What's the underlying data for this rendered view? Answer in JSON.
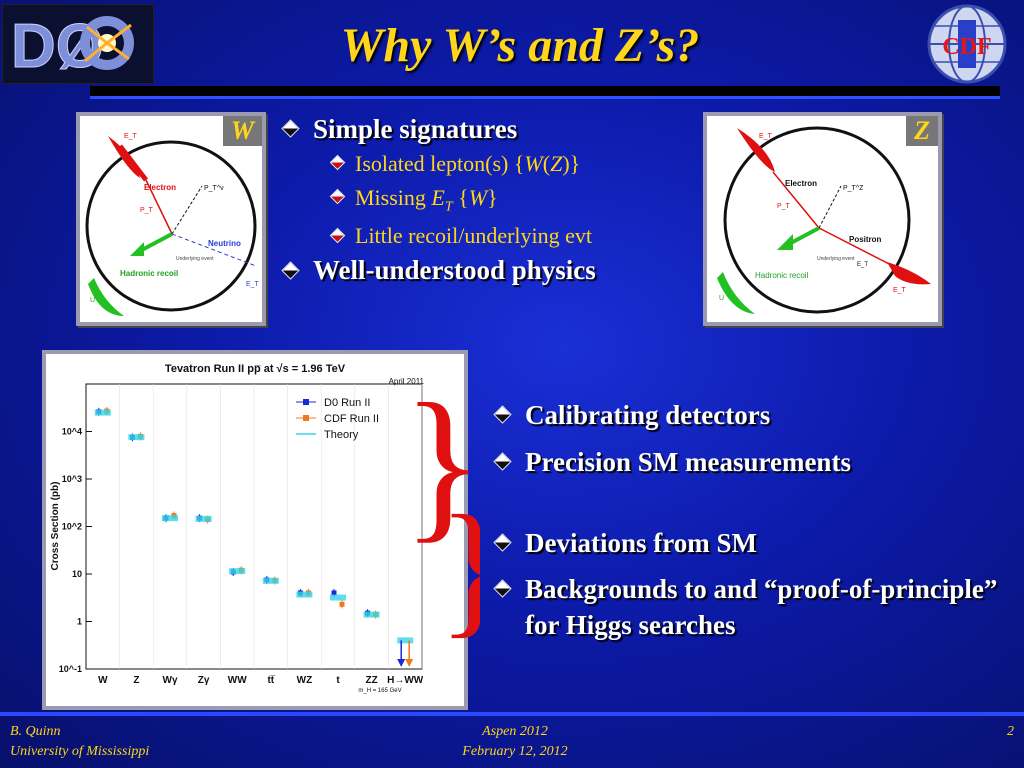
{
  "title": "Why W’s and Z’s?",
  "logos": {
    "left": "DØ",
    "right": "CDF"
  },
  "panel_w": {
    "tag": "W",
    "labels": {
      "et_top": "E_T",
      "electron": "Electron",
      "pt": "P_T",
      "ptnu": "P_T^ν",
      "neutrino": "Neutrino",
      "underlying": "Underlying event",
      "recoil": "Hadronic recoil",
      "u": "U",
      "et_right": "E_T"
    }
  },
  "panel_z": {
    "tag": "Z",
    "labels": {
      "et_top": "E_T",
      "electron": "Electron",
      "pt": "P_T",
      "ptz": "P_T^Z",
      "positron": "Positron",
      "underlying": "Underlying event",
      "recoil": "Hadronic recoil",
      "u": "U",
      "et_right": "E_T",
      "et_bottom": "E_T"
    }
  },
  "bullets_top": [
    {
      "text": "Simple signatures",
      "sub": [
        {
          "pre": "Isolated lepton(s) {",
          "em1": "W",
          "mid": "(",
          "em2": "Z",
          "post": ")}"
        },
        {
          "pre": "Missing ",
          "em1": "E",
          "sub1": "T",
          "mid": " {",
          "em2": "W",
          "post": "}"
        },
        {
          "pre": "Little recoil/underlying evt"
        }
      ]
    },
    {
      "text": "Well-understood physics"
    }
  ],
  "bullets_right": [
    "Calibrating detectors",
    "Precision SM measurements",
    "Deviations from SM",
    "Backgrounds to and “proof-of-principle” for Higgs searches"
  ],
  "chart_data": {
    "type": "scatter",
    "title": "Tevatron Run II pp̅ at √s = 1.96 TeV",
    "annotation": "April 2011",
    "ylabel": "Cross Section (pb)",
    "yscale": "log",
    "ylim": [
      0.1,
      100000
    ],
    "yticks": [
      "10^-1",
      "1",
      "10",
      "10^2",
      "10^3",
      "10^4"
    ],
    "categories": [
      "W",
      "Z",
      "Wγ",
      "Zγ",
      "WW",
      "tt̅",
      "WZ",
      "t",
      "ZZ",
      "H→WW"
    ],
    "category_note": "m_H = 165 GeV",
    "series": [
      {
        "name": "D0 Run II",
        "color": "#1a2bd6",
        "values": [
          26000,
          7500,
          150,
          150,
          11,
          7.5,
          4,
          4,
          1.5,
          null
        ]
      },
      {
        "name": "CDF Run II",
        "color": "#f07820",
        "values": [
          27000,
          7900,
          170,
          140,
          12,
          7.3,
          4,
          2.3,
          1.4,
          null
        ]
      },
      {
        "name": "Theory",
        "color": "#33d6e6",
        "values": [
          25000,
          7600,
          150,
          145,
          11.5,
          7.2,
          3.7,
          3.2,
          1.4,
          0.4
        ]
      }
    ],
    "legend": "top-right"
  },
  "footer": {
    "author": "B. Quinn",
    "affiliation": "University of Mississippi",
    "event": "Aspen 2012",
    "date": "February 12, 2012",
    "page": "2"
  }
}
